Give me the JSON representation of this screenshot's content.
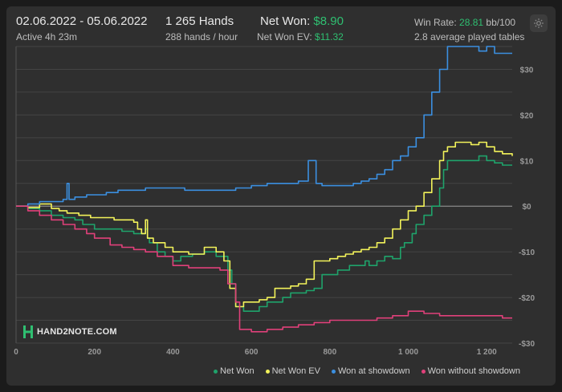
{
  "header": {
    "date_range": "02.06.2022 - 05.06.2022",
    "active": "Active 4h 23m",
    "hands": "1 265 Hands",
    "hands_rate": "288 hands / hour",
    "net_won_label": "Net Won:",
    "net_won_value": "$8.90",
    "net_won_ev_label": "Net Won  EV:",
    "net_won_ev_value": "$11.32",
    "win_rate_label": "Win Rate:",
    "win_rate_value": "28.81",
    "win_rate_unit": "bb/100",
    "avg_tables": "2.8 average played tables"
  },
  "icons": {
    "settings": "gear-icon",
    "logo": "hand2note-logo-icon"
  },
  "logo_text": "HAND2NOTE.COM",
  "colors": {
    "net_won": "#1fa36b",
    "net_won_ev": "#f2f25a",
    "won_at_showdown": "#3b8fe0",
    "won_without_showdown": "#e0407a",
    "accent_green": "#2fbf71"
  },
  "chart_data": {
    "type": "line",
    "xlabel": "",
    "ylabel": "",
    "xlim": [
      0,
      1265
    ],
    "ylim": [
      -30,
      35
    ],
    "x_ticks": [
      0,
      200,
      400,
      600,
      800,
      1000,
      1200
    ],
    "x_tick_labels": [
      "0",
      "200",
      "400",
      "600",
      "800",
      "1 000",
      "1 200"
    ],
    "y_ticks": [
      30,
      20,
      10,
      0,
      -10,
      -20,
      -30
    ],
    "y_tick_labels": [
      "$30",
      "$20",
      "$10",
      "$0",
      "-$10",
      "-$20",
      "-$30"
    ],
    "grid": true,
    "legend_position": "bottom-right",
    "series": [
      {
        "name": "Net Won",
        "color": "#1fa36b",
        "points": [
          [
            0,
            0
          ],
          [
            30,
            -0.5
          ],
          [
            60,
            -1
          ],
          [
            90,
            -2
          ],
          [
            120,
            -2.5
          ],
          [
            150,
            -3
          ],
          [
            170,
            -4
          ],
          [
            200,
            -5
          ],
          [
            240,
            -5
          ],
          [
            270,
            -5.5
          ],
          [
            300,
            -6
          ],
          [
            330,
            -5
          ],
          [
            335,
            -7
          ],
          [
            340,
            -8
          ],
          [
            360,
            -10
          ],
          [
            380,
            -11
          ],
          [
            400,
            -12
          ],
          [
            420,
            -11
          ],
          [
            450,
            -10.5
          ],
          [
            480,
            -10
          ],
          [
            510,
            -11
          ],
          [
            540,
            -14
          ],
          [
            550,
            -17
          ],
          [
            560,
            -22
          ],
          [
            580,
            -23
          ],
          [
            600,
            -23
          ],
          [
            620,
            -22
          ],
          [
            640,
            -21
          ],
          [
            660,
            -21
          ],
          [
            680,
            -20
          ],
          [
            700,
            -19
          ],
          [
            720,
            -19
          ],
          [
            740,
            -18.5
          ],
          [
            760,
            -18
          ],
          [
            780,
            -15
          ],
          [
            800,
            -15
          ],
          [
            820,
            -14
          ],
          [
            850,
            -13
          ],
          [
            870,
            -13
          ],
          [
            890,
            -12
          ],
          [
            900,
            -13
          ],
          [
            920,
            -12
          ],
          [
            940,
            -11
          ],
          [
            960,
            -11.5
          ],
          [
            980,
            -9
          ],
          [
            990,
            -8
          ],
          [
            1000,
            -8
          ],
          [
            1010,
            -6
          ],
          [
            1020,
            -4
          ],
          [
            1040,
            -2
          ],
          [
            1060,
            0
          ],
          [
            1080,
            4
          ],
          [
            1090,
            8
          ],
          [
            1100,
            10
          ],
          [
            1130,
            10
          ],
          [
            1150,
            10
          ],
          [
            1180,
            11
          ],
          [
            1200,
            10
          ],
          [
            1220,
            9.5
          ],
          [
            1240,
            9
          ],
          [
            1265,
            9
          ]
        ]
      },
      {
        "name": "Net Won  EV",
        "color": "#f2f25a",
        "points": [
          [
            0,
            0
          ],
          [
            30,
            -0.3
          ],
          [
            60,
            0.5
          ],
          [
            90,
            -0.5
          ],
          [
            110,
            -1
          ],
          [
            130,
            -1.5
          ],
          [
            160,
            -2
          ],
          [
            190,
            -2.5
          ],
          [
            220,
            -2.5
          ],
          [
            250,
            -3
          ],
          [
            280,
            -3
          ],
          [
            300,
            -3.5
          ],
          [
            310,
            -5
          ],
          [
            320,
            -6
          ],
          [
            330,
            -3
          ],
          [
            335,
            -7
          ],
          [
            350,
            -8
          ],
          [
            380,
            -9
          ],
          [
            400,
            -10
          ],
          [
            420,
            -10
          ],
          [
            440,
            -10.5
          ],
          [
            460,
            -10.5
          ],
          [
            480,
            -9
          ],
          [
            500,
            -9
          ],
          [
            510,
            -10
          ],
          [
            530,
            -12
          ],
          [
            545,
            -18
          ],
          [
            560,
            -22
          ],
          [
            580,
            -21
          ],
          [
            600,
            -21
          ],
          [
            620,
            -20.5
          ],
          [
            640,
            -20
          ],
          [
            660,
            -18
          ],
          [
            680,
            -18
          ],
          [
            700,
            -17.5
          ],
          [
            720,
            -17
          ],
          [
            740,
            -16
          ],
          [
            760,
            -12
          ],
          [
            780,
            -12
          ],
          [
            800,
            -11.5
          ],
          [
            820,
            -11
          ],
          [
            840,
            -10.5
          ],
          [
            860,
            -10
          ],
          [
            880,
            -9.5
          ],
          [
            900,
            -9
          ],
          [
            920,
            -8
          ],
          [
            940,
            -7
          ],
          [
            960,
            -5
          ],
          [
            980,
            -3
          ],
          [
            1000,
            -1
          ],
          [
            1020,
            0
          ],
          [
            1040,
            3
          ],
          [
            1060,
            6
          ],
          [
            1080,
            10
          ],
          [
            1090,
            12
          ],
          [
            1100,
            13
          ],
          [
            1120,
            14
          ],
          [
            1140,
            14
          ],
          [
            1160,
            13.5
          ],
          [
            1180,
            14
          ],
          [
            1200,
            13
          ],
          [
            1220,
            12
          ],
          [
            1240,
            11.5
          ],
          [
            1265,
            11
          ]
        ]
      },
      {
        "name": "Won at showdown",
        "color": "#3b8fe0",
        "points": [
          [
            0,
            0
          ],
          [
            30,
            0.5
          ],
          [
            60,
            1
          ],
          [
            120,
            1.5
          ],
          [
            130,
            5
          ],
          [
            135,
            1.5
          ],
          [
            150,
            2
          ],
          [
            180,
            2.5
          ],
          [
            200,
            2.5
          ],
          [
            230,
            3
          ],
          [
            260,
            3.5
          ],
          [
            300,
            3.5
          ],
          [
            330,
            4
          ],
          [
            360,
            4
          ],
          [
            400,
            4
          ],
          [
            430,
            3.5
          ],
          [
            460,
            3.5
          ],
          [
            490,
            3.5
          ],
          [
            520,
            3.5
          ],
          [
            560,
            4
          ],
          [
            600,
            4.5
          ],
          [
            640,
            5
          ],
          [
            680,
            5
          ],
          [
            720,
            5.5
          ],
          [
            740,
            5.5
          ],
          [
            745,
            10
          ],
          [
            760,
            10
          ],
          [
            765,
            5
          ],
          [
            780,
            4.5
          ],
          [
            820,
            4.5
          ],
          [
            860,
            5
          ],
          [
            880,
            5.5
          ],
          [
            900,
            6
          ],
          [
            920,
            7
          ],
          [
            940,
            8
          ],
          [
            960,
            10
          ],
          [
            980,
            11
          ],
          [
            1000,
            13
          ],
          [
            1020,
            15
          ],
          [
            1040,
            20
          ],
          [
            1060,
            25
          ],
          [
            1080,
            30
          ],
          [
            1100,
            35
          ],
          [
            1120,
            35
          ],
          [
            1140,
            35
          ],
          [
            1160,
            35
          ],
          [
            1180,
            34
          ],
          [
            1200,
            35
          ],
          [
            1220,
            33.5
          ],
          [
            1240,
            33.5
          ],
          [
            1265,
            33.5
          ]
        ]
      },
      {
        "name": "Won without showdown",
        "color": "#e0407a",
        "points": [
          [
            0,
            0
          ],
          [
            30,
            -1
          ],
          [
            60,
            -2
          ],
          [
            90,
            -3
          ],
          [
            120,
            -4
          ],
          [
            150,
            -5
          ],
          [
            180,
            -6
          ],
          [
            200,
            -7
          ],
          [
            240,
            -8.5
          ],
          [
            270,
            -9
          ],
          [
            300,
            -9.5
          ],
          [
            330,
            -10
          ],
          [
            360,
            -11
          ],
          [
            400,
            -13
          ],
          [
            440,
            -13.5
          ],
          [
            480,
            -13.5
          ],
          [
            520,
            -14
          ],
          [
            540,
            -17
          ],
          [
            560,
            -21
          ],
          [
            570,
            -27
          ],
          [
            600,
            -27.5
          ],
          [
            640,
            -27
          ],
          [
            680,
            -26.5
          ],
          [
            720,
            -26
          ],
          [
            760,
            -25.5
          ],
          [
            800,
            -25
          ],
          [
            840,
            -25
          ],
          [
            880,
            -25
          ],
          [
            920,
            -24.5
          ],
          [
            960,
            -24
          ],
          [
            1000,
            -23
          ],
          [
            1040,
            -23.5
          ],
          [
            1080,
            -24
          ],
          [
            1120,
            -24
          ],
          [
            1160,
            -24
          ],
          [
            1200,
            -24
          ],
          [
            1240,
            -24.5
          ],
          [
            1265,
            -24.5
          ]
        ]
      }
    ]
  }
}
